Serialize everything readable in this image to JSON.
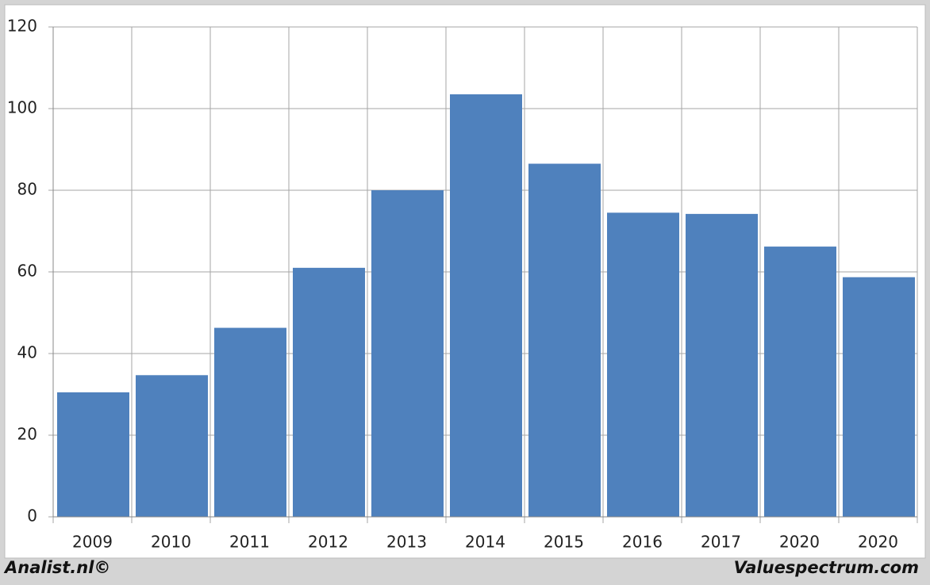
{
  "chart_data": {
    "type": "bar",
    "categories": [
      "2009",
      "2010",
      "2011",
      "2012",
      "2013",
      "2014",
      "2015",
      "2016",
      "2017",
      "2020",
      "2020"
    ],
    "values": [
      30.5,
      34.7,
      46.3,
      61,
      80,
      103.5,
      86.5,
      74.5,
      74.2,
      66.2,
      58.7
    ],
    "color": "#4f81bd",
    "ylim": [
      0,
      120
    ],
    "yticks": [
      0,
      20,
      40,
      60,
      80,
      100,
      120
    ],
    "grid": true,
    "annotations": [
      "Analist.nl©",
      "Valuespectrum.com"
    ]
  }
}
